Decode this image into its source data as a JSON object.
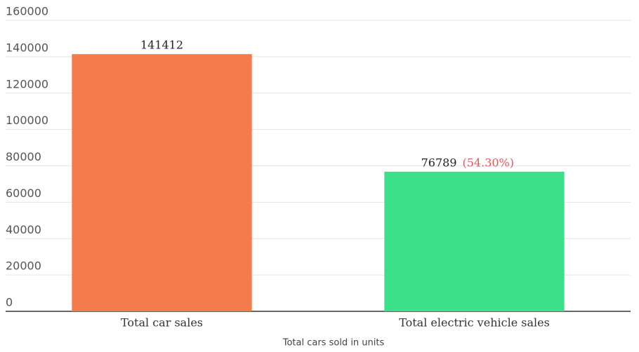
{
  "chart_data": {
    "type": "bar",
    "categories": [
      "Total car sales",
      "Total electric vehicle sales"
    ],
    "values": [
      141412,
      76789
    ],
    "colors": [
      "#f47b4c",
      "#3ae08a"
    ],
    "annotations": [
      "(54.30%)"
    ],
    "x_label": "Total cars sold in units",
    "ylim": [
      0,
      160000
    ],
    "yticks": [
      0,
      20000,
      40000,
      60000,
      80000,
      100000,
      120000,
      140000,
      160000
    ],
    "grid": true
  }
}
